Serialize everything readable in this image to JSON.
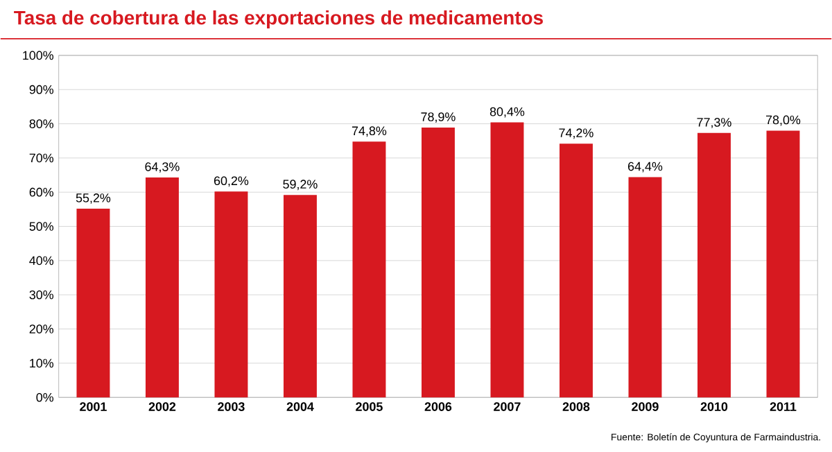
{
  "chart_data": {
    "type": "bar",
    "title": "Tasa de cobertura de las exportaciones de medicamentos",
    "categories": [
      "2001",
      "2002",
      "2003",
      "2004",
      "2005",
      "2006",
      "2007",
      "2008",
      "2009",
      "2010",
      "2011"
    ],
    "values": [
      55.2,
      64.3,
      60.2,
      59.2,
      74.8,
      78.9,
      80.4,
      74.2,
      64.4,
      77.3,
      78.0
    ],
    "value_labels": [
      "55,2%",
      "64,3%",
      "60,2%",
      "59,2%",
      "74,8%",
      "78,9%",
      "80,4%",
      "74,2%",
      "64,4%",
      "77,3%",
      "78,0%"
    ],
    "color": "#d71920",
    "ylim": [
      0,
      100
    ],
    "yticks": [
      {
        "value": 0,
        "label": "0%"
      },
      {
        "value": 10,
        "label": "10%"
      },
      {
        "value": 20,
        "label": "20%"
      },
      {
        "value": 30,
        "label": "30%"
      },
      {
        "value": 40,
        "label": "40%"
      },
      {
        "value": 50,
        "label": "50%"
      },
      {
        "value": 60,
        "label": "60%"
      },
      {
        "value": 70,
        "label": "70%"
      },
      {
        "value": 80,
        "label": "80%"
      },
      {
        "value": 90,
        "label": "90%"
      },
      {
        "value": 100,
        "label": "100%"
      }
    ],
    "grid": "y",
    "annotations": [
      "Fuente: Boletín de Coyuntura de Farmaindustria."
    ]
  }
}
